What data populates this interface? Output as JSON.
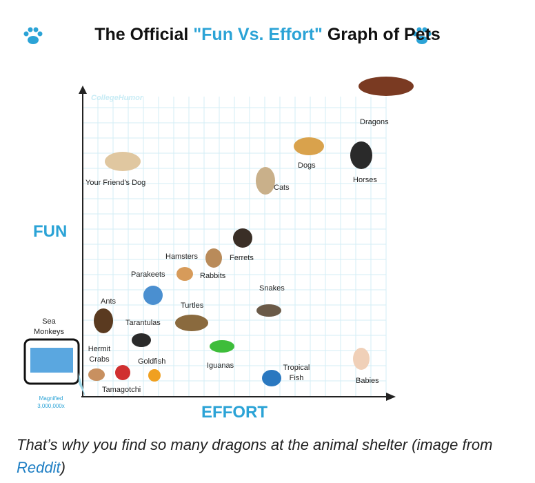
{
  "header": {
    "title_parts": [
      "The Official",
      "\"Fun Vs. Effort\"",
      "Graph of Pets"
    ]
  },
  "watermark": "CollegeHumor",
  "axes": {
    "y_label": "FUN",
    "x_label": "EFFORT"
  },
  "pets": [
    "Dragons",
    "Dogs",
    "Horses",
    "Your Friend's Dog",
    "Cats",
    "Hamsters",
    "Ferrets",
    "Parakeets",
    "Rabbits",
    "Snakes",
    "Ants",
    "Turtles",
    "Sea Monkeys",
    "Tarantulas",
    "Hermit Crabs",
    "Goldfish",
    "Iguanas",
    "Tropical Fish",
    "Babies",
    "Tamagotchi"
  ],
  "inset_note": "Magnified 3,000,000x",
  "caption": {
    "text": "That’s why you find so many dragons at the animal shelter (image from",
    "link": "Reddit",
    "end": ")"
  }
}
